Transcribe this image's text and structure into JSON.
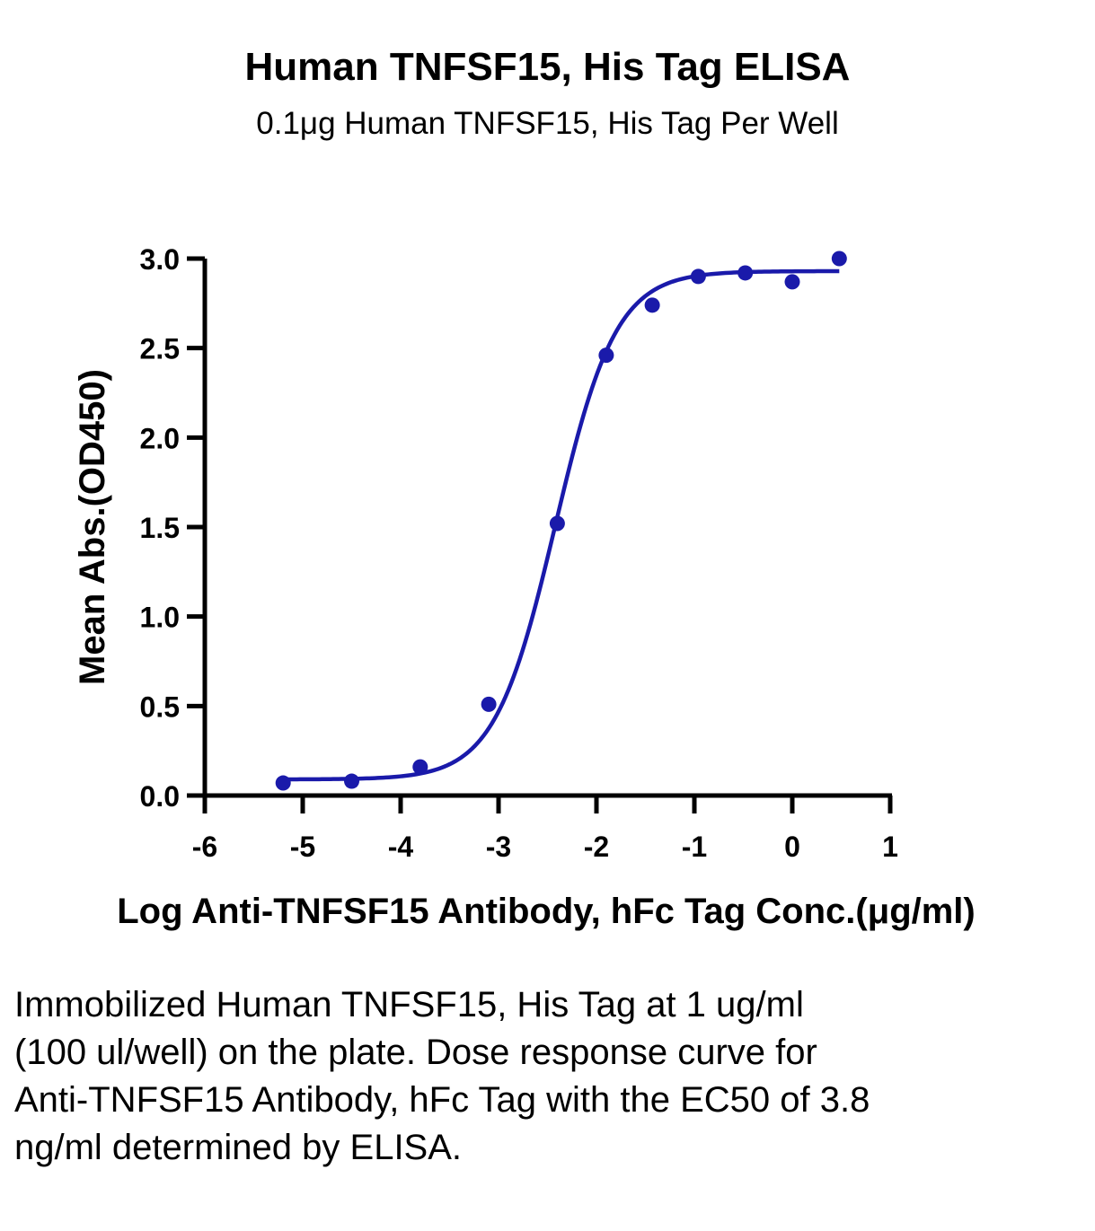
{
  "title": "Human TNFSF15, His Tag ELISA",
  "subtitle": "0.1μg Human TNFSF15, His Tag Per Well",
  "caption": "Immobilized Human TNFSF15, His Tag at 1 ug/ml (100 ul/well) on the plate. Dose response curve for Anti-TNFSF15 Antibody, hFc Tag with the EC50 of 3.8 ng/ml determined by ELISA.",
  "colors": {
    "series": "#1a1aaa",
    "axis": "#000000"
  },
  "chart_data": {
    "type": "scatter",
    "title": "Human TNFSF15, His Tag ELISA",
    "subtitle": "0.1μg Human TNFSF15, His Tag Per Well",
    "xlabel": "Log Anti-TNFSF15 Antibody, hFc Tag Conc.(μg/ml)",
    "ylabel": "Mean Abs.(OD450)",
    "xlim": [
      -6,
      1
    ],
    "ylim": [
      0,
      3
    ],
    "xticks": [
      "-6",
      "-5",
      "-4",
      "-3",
      "-2",
      "-1",
      "0",
      "1"
    ],
    "yticks": [
      "0.0",
      "0.5",
      "1.0",
      "1.5",
      "2.0",
      "2.5",
      "3.0"
    ],
    "grid": false,
    "series": [
      {
        "points": {
          "x": [
            -5.2,
            -4.5,
            -3.8,
            -3.1,
            -2.4,
            -1.9,
            -1.43,
            -0.96,
            -0.48,
            0.0,
            0.48
          ],
          "y": [
            0.07,
            0.08,
            0.16,
            0.51,
            1.52,
            2.46,
            2.74,
            2.9,
            2.92,
            2.87,
            3.0
          ]
        },
        "fit": {
          "model": "4PL",
          "bottom": 0.09,
          "top": 2.93,
          "log_ec50": -2.42,
          "hill_slope": 1.4,
          "x_range": [
            -5.2,
            0.48
          ]
        }
      }
    ]
  }
}
